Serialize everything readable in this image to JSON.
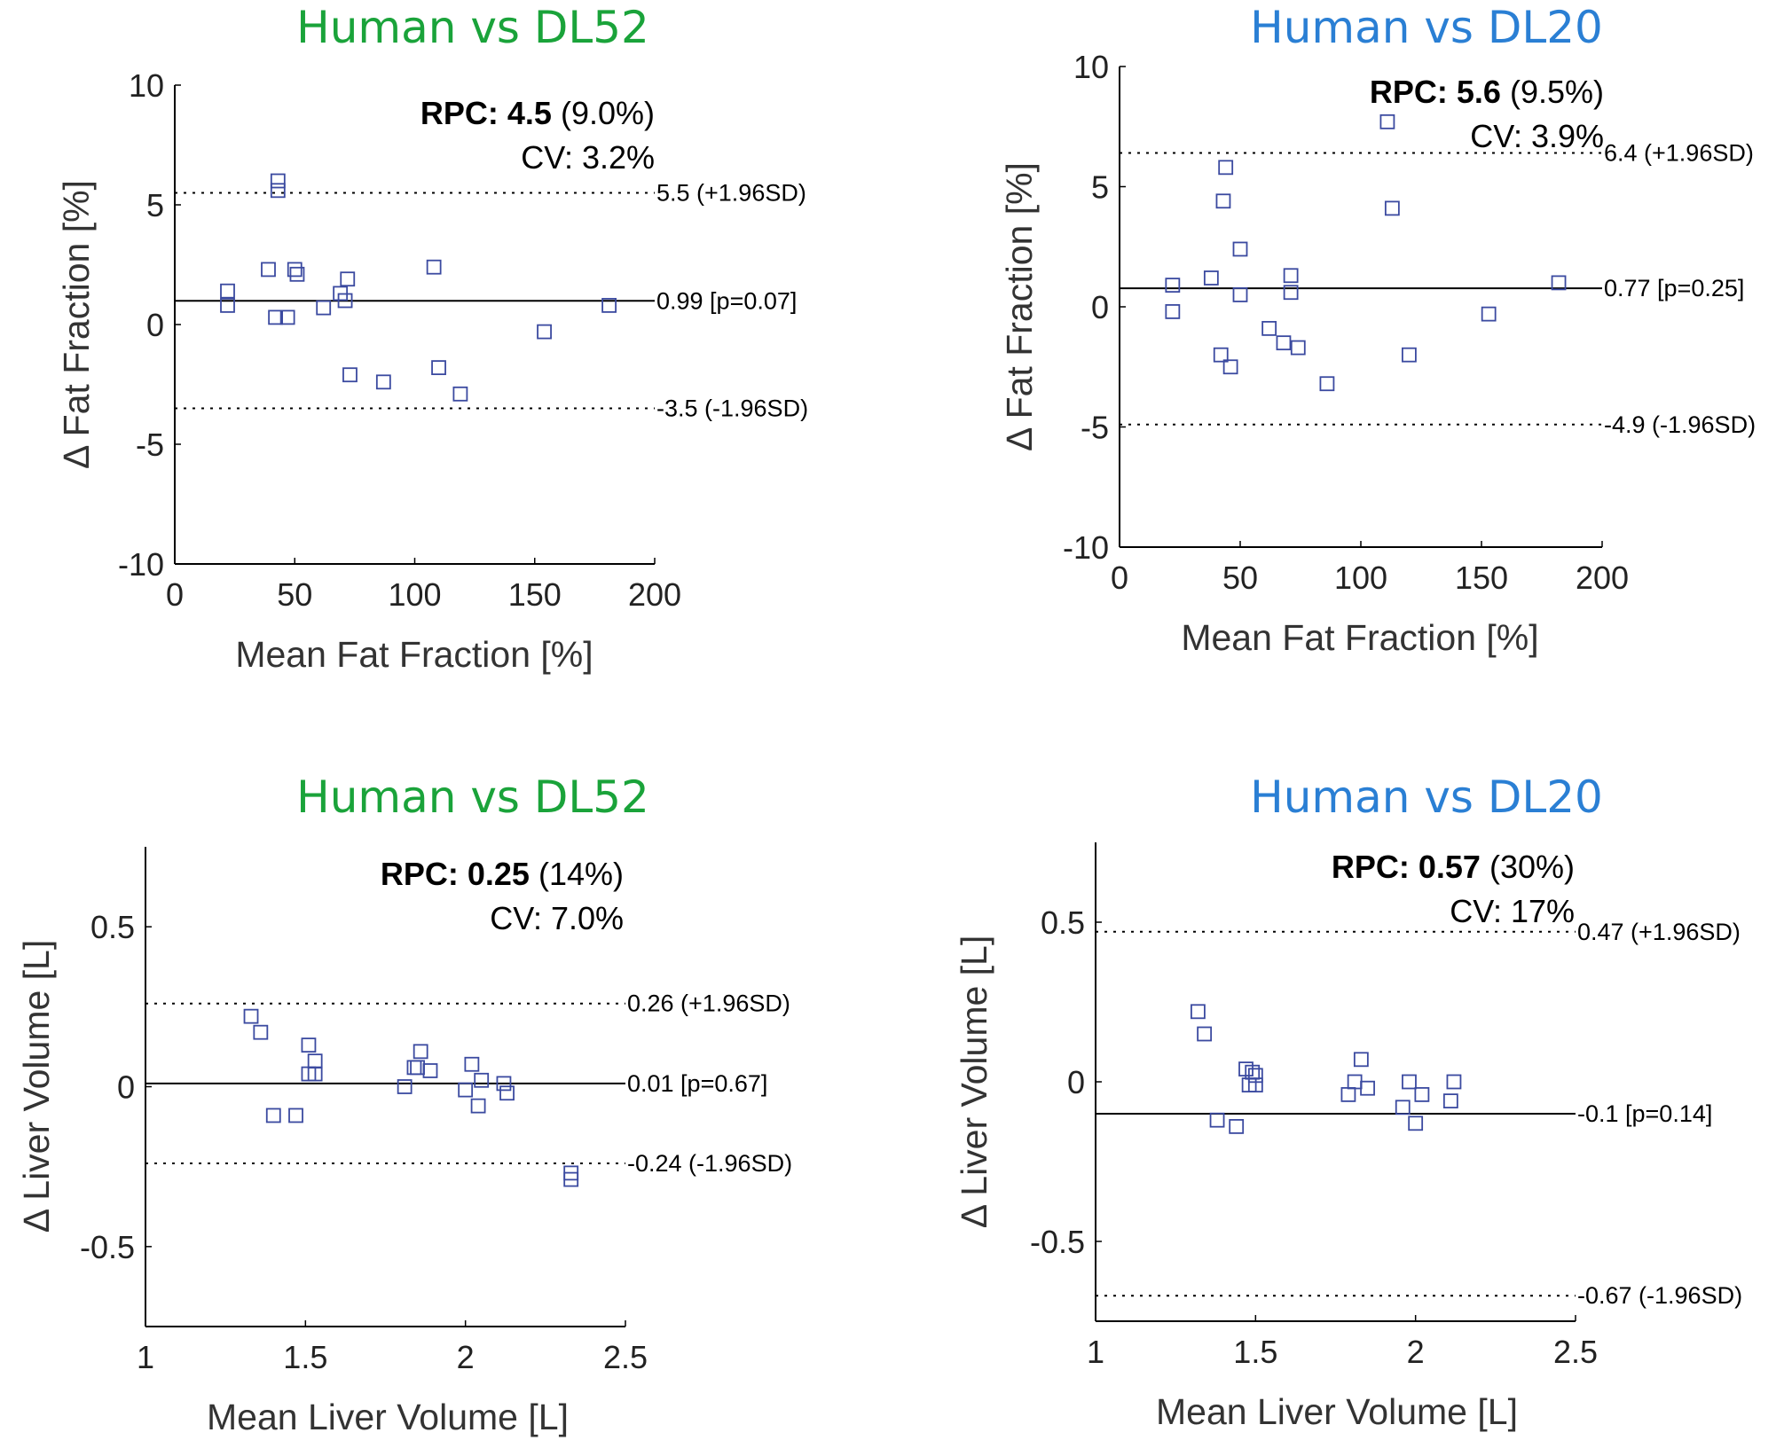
{
  "figure": {
    "panels_label": "Bland-Altman agreement plots"
  },
  "colors": {
    "dl52_title": "#1aa33a",
    "dl20_title": "#2a7fd4",
    "marker": "#3b4aa0",
    "axis": "#000000"
  },
  "chart_data": [
    {
      "type": "scatter",
      "title": "Human vs DL52",
      "xlabel": "Mean Fat Fraction [%]",
      "ylabel": "Δ Fat Fraction [%]",
      "xlim": [
        0,
        200
      ],
      "ylim": [
        -10,
        10
      ],
      "xticks": [
        0,
        50,
        100,
        150,
        200
      ],
      "xtick_labels": [
        "0",
        "50",
        "100",
        "150",
        "200"
      ],
      "yticks": [
        -10,
        -5,
        0,
        5,
        10
      ],
      "ytick_labels": [
        "-10",
        "-5",
        "0",
        "5",
        "10"
      ],
      "mean_line": {
        "value": 0.99,
        "label": "0.99 [p=0.07]"
      },
      "upper_loa": {
        "value": 5.5,
        "label": "5.5 (+1.96SD)"
      },
      "lower_loa": {
        "value": -3.5,
        "label": "-3.5 (-1.96SD)"
      },
      "rpc_prefix": "RPC: ",
      "rpc_value": "4.5",
      "rpc_pct": " (9.0%)",
      "cv": "CV: 3.2%",
      "points": [
        [
          22,
          1.4
        ],
        [
          22,
          0.8
        ],
        [
          39,
          2.3
        ],
        [
          42,
          0.3
        ],
        [
          43,
          6.0
        ],
        [
          43,
          5.6
        ],
        [
          47,
          0.3
        ],
        [
          50,
          2.3
        ],
        [
          51,
          2.1
        ],
        [
          62,
          0.7
        ],
        [
          69,
          1.3
        ],
        [
          71,
          1.0
        ],
        [
          72,
          1.9
        ],
        [
          73,
          -2.1
        ],
        [
          87,
          -2.4
        ],
        [
          108,
          2.4
        ],
        [
          110,
          -1.8
        ],
        [
          119,
          -2.9
        ],
        [
          154,
          -0.3
        ],
        [
          181,
          0.8
        ]
      ],
      "title_color": "#1aa33a"
    },
    {
      "type": "scatter",
      "title": "Human vs DL20",
      "xlabel": "Mean Fat Fraction [%]",
      "ylabel": "Δ Fat Fraction [%]",
      "xlim": [
        0,
        200
      ],
      "ylim": [
        -10,
        10
      ],
      "xticks": [
        0,
        50,
        100,
        150,
        200
      ],
      "xtick_labels": [
        "0",
        "50",
        "100",
        "150",
        "200"
      ],
      "yticks": [
        -10,
        -5,
        0,
        5,
        10
      ],
      "ytick_labels": [
        "-10",
        "-5",
        "0",
        "5",
        "10"
      ],
      "mean_line": {
        "value": 0.77,
        "label": "0.77 [p=0.25]"
      },
      "upper_loa": {
        "value": 6.4,
        "label": "6.4 (+1.96SD)"
      },
      "lower_loa": {
        "value": -4.9,
        "label": "-4.9 (-1.96SD)"
      },
      "rpc_prefix": "RPC: ",
      "rpc_value": "5.6",
      "rpc_pct": " (9.5%)",
      "cv": "CV: 3.9%",
      "points": [
        [
          22,
          0.9
        ],
        [
          22,
          -0.2
        ],
        [
          38,
          1.2
        ],
        [
          42,
          -2.0
        ],
        [
          43,
          4.4
        ],
        [
          44,
          5.8
        ],
        [
          46,
          -2.5
        ],
        [
          50,
          2.4
        ],
        [
          50,
          0.5
        ],
        [
          62,
          -0.9
        ],
        [
          68,
          -1.5
        ],
        [
          71,
          1.3
        ],
        [
          71,
          0.6
        ],
        [
          74,
          -1.7
        ],
        [
          86,
          -3.2
        ],
        [
          111,
          7.7
        ],
        [
          113,
          4.1
        ],
        [
          120,
          -2.0
        ],
        [
          153,
          -0.3
        ],
        [
          182,
          1.0
        ]
      ],
      "title_color": "#2a7fd4"
    },
    {
      "type": "scatter",
      "title": "Human vs DL52",
      "xlabel": "Mean Liver Volume [L]",
      "ylabel": "Δ Liver Volume [L]",
      "xlim": [
        1,
        2.5
      ],
      "ylim": [
        -0.75,
        0.75
      ],
      "xticks": [
        1,
        1.5,
        2,
        2.5
      ],
      "xtick_labels": [
        "1",
        "1.5",
        "2",
        "2.5"
      ],
      "yticks": [
        -0.5,
        0,
        0.5
      ],
      "ytick_labels": [
        "-0.5",
        "0",
        "0.5"
      ],
      "mean_line": {
        "value": 0.01,
        "label": "0.01 [p=0.67]"
      },
      "upper_loa": {
        "value": 0.26,
        "label": "0.26 (+1.96SD)"
      },
      "lower_loa": {
        "value": -0.24,
        "label": "-0.24 (-1.96SD)"
      },
      "rpc_prefix": "RPC: ",
      "rpc_value": "0.25",
      "rpc_pct": " (14%)",
      "cv": "CV: 7.0%",
      "points": [
        [
          1.33,
          0.22
        ],
        [
          1.36,
          0.17
        ],
        [
          1.4,
          -0.09
        ],
        [
          1.47,
          -0.09
        ],
        [
          1.51,
          0.13
        ],
        [
          1.51,
          0.04
        ],
        [
          1.53,
          0.08
        ],
        [
          1.53,
          0.04
        ],
        [
          1.81,
          0.0
        ],
        [
          1.84,
          0.06
        ],
        [
          1.85,
          0.06
        ],
        [
          1.86,
          0.11
        ],
        [
          1.89,
          0.05
        ],
        [
          2.0,
          -0.01
        ],
        [
          2.02,
          0.07
        ],
        [
          2.04,
          -0.06
        ],
        [
          2.05,
          0.02
        ],
        [
          2.12,
          0.01
        ],
        [
          2.13,
          -0.02
        ],
        [
          2.33,
          -0.27
        ],
        [
          2.33,
          -0.29
        ]
      ],
      "title_color": "#1aa33a"
    },
    {
      "type": "scatter",
      "title": "Human vs DL20",
      "xlabel": "Mean Liver Volume [L]",
      "ylabel": "Δ Liver Volume [L]",
      "xlim": [
        1,
        2.5
      ],
      "ylim": [
        -0.75,
        0.75
      ],
      "xticks": [
        1,
        1.5,
        2,
        2.5
      ],
      "xtick_labels": [
        "1",
        "1.5",
        "2",
        "2.5"
      ],
      "yticks": [
        -0.5,
        0,
        0.5
      ],
      "ytick_labels": [
        "-0.5",
        "0",
        "0.5"
      ],
      "mean_line": {
        "value": -0.1,
        "label": "-0.1 [p=0.14]"
      },
      "upper_loa": {
        "value": 0.47,
        "label": "0.47 (+1.96SD)"
      },
      "lower_loa": {
        "value": -0.67,
        "label": "-0.67 (-1.96SD)"
      },
      "rpc_prefix": "RPC: ",
      "rpc_value": "0.57",
      "rpc_pct": " (30%)",
      "cv": "CV: 17%",
      "points": [
        [
          1.32,
          0.22
        ],
        [
          1.34,
          0.15
        ],
        [
          1.38,
          -0.12
        ],
        [
          1.44,
          -0.14
        ],
        [
          1.47,
          0.04
        ],
        [
          1.48,
          -0.01
        ],
        [
          1.49,
          0.03
        ],
        [
          1.5,
          0.02
        ],
        [
          1.5,
          -0.01
        ],
        [
          1.79,
          -0.04
        ],
        [
          1.81,
          0.0
        ],
        [
          1.83,
          0.07
        ],
        [
          1.85,
          -0.02
        ],
        [
          1.96,
          -0.08
        ],
        [
          1.98,
          0.0
        ],
        [
          2.0,
          -0.13
        ],
        [
          2.02,
          -0.04
        ],
        [
          2.11,
          -0.06
        ],
        [
          2.12,
          0.0
        ]
      ],
      "title_color": "#2a7fd4"
    }
  ]
}
